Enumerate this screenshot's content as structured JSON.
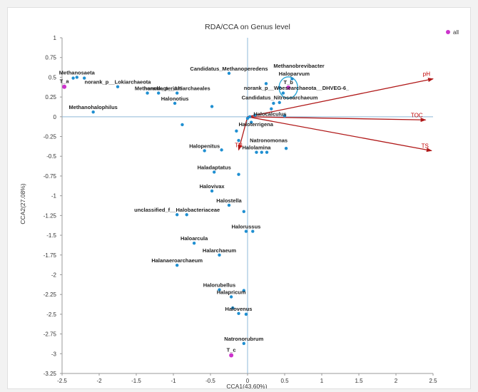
{
  "chart_data": {
    "type": "scatter",
    "title": "RDA/CCA on Genus level",
    "xlabel": "CCA1(43.60%)",
    "ylabel": "CCA2(27.08%)",
    "xlim": [
      -2.5,
      2.5
    ],
    "ylim": [
      -3.25,
      1
    ],
    "xticks": [
      -2.5,
      -2,
      -1.5,
      -1,
      -0.5,
      0,
      0.5,
      1,
      1.5,
      2,
      2.5
    ],
    "yticks": [
      1,
      0.75,
      0.5,
      0.25,
      0,
      -0.25,
      -0.5,
      -0.75,
      -1,
      -1.25,
      -1.5,
      -1.75,
      -2,
      -2.25,
      -2.5,
      -2.75,
      -3,
      -3.25
    ],
    "legend": {
      "label": "all",
      "position": "top-right",
      "color": "#cc33cc"
    },
    "colors": {
      "species": "#1f8fd1",
      "samples": "#cc33cc",
      "vectors": "#b01818",
      "axes": "#8fb8d8",
      "ellipse": "#2aa6d6"
    },
    "species": [
      {
        "x": -2.3,
        "y": 0.5,
        "label": "Methanosaeta"
      },
      {
        "x": -2.35,
        "y": 0.49
      },
      {
        "x": -2.2,
        "y": 0.49
      },
      {
        "x": -1.75,
        "y": 0.38,
        "label": "norank_p__Lokiarchaeota"
      },
      {
        "x": -1.35,
        "y": 0.3
      },
      {
        "x": -1.2,
        "y": 0.3,
        "label": "Methanobacterium"
      },
      {
        "x": -0.95,
        "y": 0.3,
        "label": "norank_p__Altiarchaeales"
      },
      {
        "x": -0.98,
        "y": 0.17,
        "label": "Halonotius"
      },
      {
        "x": -2.08,
        "y": 0.06,
        "label": "Methanohalophilus"
      },
      {
        "x": -0.25,
        "y": 0.55,
        "label": "Candidatus_Methanoperedens"
      },
      {
        "x": -0.48,
        "y": 0.13
      },
      {
        "x": 0.25,
        "y": 0.42
      },
      {
        "x": 0.43,
        "y": 0.37
      },
      {
        "x": 0.6,
        "y": 0.48
      },
      {
        "x": 0.48,
        "y": 0.3
      },
      {
        "x": 0.43,
        "y": 0.18
      },
      {
        "x": 0.35,
        "y": 0.17
      },
      {
        "x": 0.32,
        "y": 0.1
      },
      {
        "x": 0.1,
        "y": 0.02
      },
      {
        "x": 0.03,
        "y": 0.0
      },
      {
        "x": 0.05,
        "y": -0.07
      },
      {
        "x": 0.0,
        "y": -0.02
      },
      {
        "x": 0.5,
        "y": 0.01
      },
      {
        "x": -0.15,
        "y": -0.18
      },
      {
        "x": -0.88,
        "y": -0.1
      },
      {
        "x": -0.58,
        "y": -0.43,
        "label": "Halopenitus"
      },
      {
        "x": -0.35,
        "y": -0.42
      },
      {
        "x": -0.12,
        "y": -0.3
      },
      {
        "x": 0.12,
        "y": -0.45,
        "label": "Halolamina"
      },
      {
        "x": 0.19,
        "y": -0.45
      },
      {
        "x": 0.26,
        "y": -0.45
      },
      {
        "x": 0.52,
        "y": -0.4
      },
      {
        "x": -0.45,
        "y": -0.7,
        "label": "Haladaptatus"
      },
      {
        "x": -0.12,
        "y": -0.73
      },
      {
        "x": -0.48,
        "y": -0.94,
        "label": "Halovivax"
      },
      {
        "x": -0.25,
        "y": -1.12,
        "label": "Halostella"
      },
      {
        "x": -0.05,
        "y": -1.2
      },
      {
        "x": -0.95,
        "y": -1.24,
        "label": "unclassified_f__Halobacteriaceae"
      },
      {
        "x": -0.82,
        "y": -1.24
      },
      {
        "x": -0.02,
        "y": -1.45,
        "label": "Halorussus"
      },
      {
        "x": 0.07,
        "y": -1.45
      },
      {
        "x": -0.72,
        "y": -1.6,
        "label": "Haloarcula"
      },
      {
        "x": -0.38,
        "y": -1.75,
        "label": "Halarchaeum"
      },
      {
        "x": -0.95,
        "y": -1.88,
        "label": "Halanaeroarchaeum"
      },
      {
        "x": -0.38,
        "y": -2.19,
        "label": "Halorubellus"
      },
      {
        "x": -0.05,
        "y": -2.2
      },
      {
        "x": -0.22,
        "y": -2.28,
        "label": "Halapricum"
      },
      {
        "x": -0.2,
        "y": -2.42
      },
      {
        "x": -0.12,
        "y": -2.49,
        "label": "Halovenus"
      },
      {
        "x": -0.02,
        "y": -2.5
      },
      {
        "x": -0.05,
        "y": -2.87,
        "label": "Natronorubrum"
      }
    ],
    "extra_labels": [
      {
        "x": 0.35,
        "y": 0.62,
        "text": "Methanobrevibacter"
      },
      {
        "x": 0.42,
        "y": 0.52,
        "text": "Haloparvum"
      },
      {
        "x": -0.05,
        "y": 0.34,
        "text": "norank_p__Woesearchaeota__DHVEG-6_"
      },
      {
        "x": -0.08,
        "y": 0.22,
        "text": "Candidatus_Nitrosoarchaeum"
      },
      {
        "x": 0.08,
        "y": 0.01,
        "text": "Halocalculus"
      },
      {
        "x": -0.12,
        "y": -0.12,
        "text": "Haloterrigena"
      },
      {
        "x": 0.03,
        "y": -0.32,
        "text": "Natronomonas"
      }
    ],
    "samples": [
      {
        "x": -2.47,
        "y": 0.38,
        "label": "T_a"
      },
      {
        "x": 0.55,
        "y": 0.37,
        "label": "T_b"
      },
      {
        "x": -0.22,
        "y": -3.02,
        "label": "T_c"
      }
    ],
    "vectors": [
      {
        "x": 2.5,
        "y": 0.48,
        "label": "pH"
      },
      {
        "x": 2.4,
        "y": -0.04,
        "label": "TOC"
      },
      {
        "x": 2.48,
        "y": -0.43,
        "label": "TS"
      },
      {
        "x": -0.12,
        "y": -0.42,
        "label": "TN"
      }
    ]
  }
}
